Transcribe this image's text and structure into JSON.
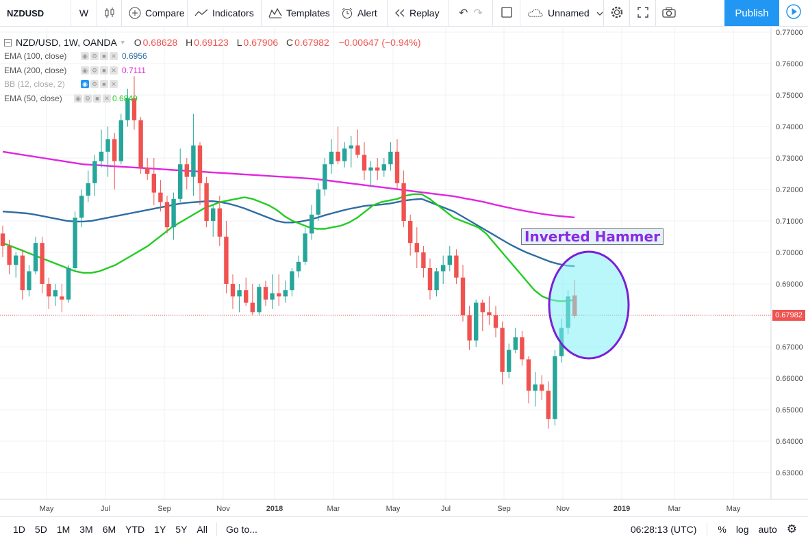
{
  "toolbar": {
    "symbol": "NZDUSD",
    "interval": "W",
    "compare_label": "Compare",
    "indicators_label": "Indicators",
    "templates_label": "Templates",
    "alert_label": "Alert",
    "replay_label": "Replay",
    "layout_name": "Unnamed",
    "publish_label": "Publish"
  },
  "legend": {
    "title": "NZD/USD, 1W, OANDA",
    "open_label": "O",
    "open": "0.68628",
    "high_label": "H",
    "high": "0.69123",
    "low_label": "L",
    "low": "0.67906",
    "close_label": "C",
    "close": "0.67982",
    "change": "−0.00647 (−0.94%)",
    "indicators": [
      {
        "name": "EMA (100, close)",
        "value": "0.6956",
        "color": "#2e6ca4"
      },
      {
        "name": "EMA (200, close)",
        "value": "0.7111",
        "color": "#e026e0"
      },
      {
        "name": "BB (12, close, 2)",
        "value": "",
        "color": "#999999"
      },
      {
        "name": "EMA (50, close)",
        "value": "0.6849",
        "color": "#22cc22"
      }
    ]
  },
  "annotation": {
    "text": "Inverted Hammer"
  },
  "last_price": "0.67982",
  "y_axis": {
    "ticks": [
      "0.77000",
      "0.76000",
      "0.75000",
      "0.74000",
      "0.73000",
      "0.72000",
      "0.71000",
      "0.70000",
      "0.69000",
      "0.68000",
      "0.67000",
      "0.66000",
      "0.65000",
      "0.64000",
      "0.63000"
    ]
  },
  "x_axis": {
    "ticks": [
      "May",
      "Jul",
      "Sep",
      "Nov",
      "2018",
      "Mar",
      "May",
      "Jul",
      "Sep",
      "Nov",
      "2019",
      "Mar",
      "May"
    ]
  },
  "bottom": {
    "ranges": [
      "1D",
      "5D",
      "1M",
      "3M",
      "6M",
      "YTD",
      "1Y",
      "5Y",
      "All"
    ],
    "goto_label": "Go to...",
    "clock": "06:28:13 (UTC)",
    "percent_label": "%",
    "log_label": "log",
    "auto_label": "auto"
  },
  "colors": {
    "up": "#26a69a",
    "down": "#ef5350",
    "ema50": "#22cc22",
    "ema100": "#2e6ca4",
    "ema200": "#e026e0"
  },
  "chart_data": {
    "type": "candlestick",
    "title": "NZD/USD, 1W, OANDA",
    "ylim": [
      0.62,
      0.775
    ],
    "x": [
      "2017-04-03",
      "2017-04-10",
      "2017-04-17",
      "2017-04-24",
      "2017-05-01",
      "2017-05-08",
      "2017-05-15",
      "2017-05-22",
      "2017-05-29",
      "2017-06-05",
      "2017-06-12",
      "2017-06-19",
      "2017-06-26",
      "2017-07-03",
      "2017-07-10",
      "2017-07-17",
      "2017-07-24",
      "2017-07-31",
      "2017-08-07",
      "2017-08-14",
      "2017-08-21",
      "2017-08-28",
      "2017-09-04",
      "2017-09-11",
      "2017-09-18",
      "2017-09-25",
      "2017-10-02",
      "2017-10-09",
      "2017-10-16",
      "2017-10-23",
      "2017-10-30",
      "2017-11-06",
      "2017-11-13",
      "2017-11-20",
      "2017-11-27",
      "2017-12-04",
      "2017-12-11",
      "2017-12-18",
      "2017-12-25",
      "2018-01-01",
      "2018-01-08",
      "2018-01-15",
      "2018-01-22",
      "2018-01-29",
      "2018-02-05",
      "2018-02-12",
      "2018-02-19",
      "2018-02-26",
      "2018-03-05",
      "2018-03-12",
      "2018-03-19",
      "2018-03-26",
      "2018-04-02",
      "2018-04-09",
      "2018-04-16",
      "2018-04-23",
      "2018-04-30",
      "2018-05-07",
      "2018-05-14",
      "2018-05-21",
      "2018-05-28",
      "2018-06-04",
      "2018-06-11",
      "2018-06-18",
      "2018-06-25",
      "2018-07-02",
      "2018-07-09",
      "2018-07-16",
      "2018-07-23",
      "2018-07-30",
      "2018-08-06",
      "2018-08-13",
      "2018-08-20",
      "2018-08-27",
      "2018-09-03",
      "2018-09-10",
      "2018-09-17",
      "2018-09-24",
      "2018-10-01",
      "2018-10-08",
      "2018-10-15",
      "2018-10-22",
      "2018-10-29",
      "2018-11-05",
      "2018-11-12",
      "2018-11-19",
      "2018-11-26",
      "2018-12-03"
    ],
    "ohlc": [
      [
        0.706,
        0.7085,
        0.6985,
        0.702
      ],
      [
        0.702,
        0.704,
        0.693,
        0.696
      ],
      [
        0.696,
        0.7,
        0.692,
        0.699
      ],
      [
        0.699,
        0.701,
        0.685,
        0.688
      ],
      [
        0.688,
        0.696,
        0.686,
        0.694
      ],
      [
        0.694,
        0.705,
        0.693,
        0.703
      ],
      [
        0.703,
        0.705,
        0.687,
        0.69
      ],
      [
        0.69,
        0.692,
        0.682,
        0.686
      ],
      [
        0.686,
        0.69,
        0.683,
        0.688
      ],
      [
        0.686,
        0.69,
        0.681,
        0.685
      ],
      [
        0.685,
        0.696,
        0.684,
        0.695
      ],
      [
        0.695,
        0.713,
        0.694,
        0.711
      ],
      [
        0.711,
        0.72,
        0.708,
        0.718
      ],
      [
        0.718,
        0.726,
        0.716,
        0.722
      ],
      [
        0.722,
        0.731,
        0.718,
        0.729
      ],
      [
        0.729,
        0.739,
        0.727,
        0.732
      ],
      [
        0.732,
        0.74,
        0.724,
        0.736
      ],
      [
        0.736,
        0.738,
        0.72,
        0.729
      ],
      [
        0.729,
        0.744,
        0.728,
        0.742
      ],
      [
        0.742,
        0.752,
        0.74,
        0.749
      ],
      [
        0.749,
        0.756,
        0.739,
        0.742
      ],
      [
        0.742,
        0.743,
        0.725,
        0.727
      ],
      [
        0.727,
        0.73,
        0.723,
        0.725
      ],
      [
        0.725,
        0.73,
        0.715,
        0.719
      ],
      [
        0.719,
        0.723,
        0.713,
        0.716
      ],
      [
        0.716,
        0.718,
        0.706,
        0.708
      ],
      [
        0.708,
        0.719,
        0.704,
        0.717
      ],
      [
        0.717,
        0.733,
        0.716,
        0.728
      ],
      [
        0.728,
        0.73,
        0.72,
        0.724
      ],
      [
        0.724,
        0.744,
        0.718,
        0.734
      ],
      [
        0.734,
        0.735,
        0.715,
        0.722
      ],
      [
        0.722,
        0.724,
        0.708,
        0.71
      ],
      [
        0.71,
        0.715,
        0.705,
        0.714
      ],
      [
        0.714,
        0.718,
        0.702,
        0.705
      ],
      [
        0.705,
        0.71,
        0.687,
        0.69
      ],
      [
        0.69,
        0.693,
        0.682,
        0.686
      ],
      [
        0.686,
        0.69,
        0.681,
        0.688
      ],
      [
        0.688,
        0.692,
        0.683,
        0.684
      ],
      [
        0.684,
        0.69,
        0.68,
        0.681
      ],
      [
        0.681,
        0.69,
        0.68,
        0.689
      ],
      [
        0.689,
        0.691,
        0.683,
        0.685
      ],
      [
        0.685,
        0.693,
        0.682,
        0.687
      ],
      [
        0.687,
        0.693,
        0.683,
        0.686
      ],
      [
        0.686,
        0.691,
        0.684,
        0.688
      ],
      [
        0.688,
        0.695,
        0.686,
        0.694
      ],
      [
        0.694,
        0.699,
        0.692,
        0.697
      ],
      [
        0.697,
        0.708,
        0.696,
        0.706
      ],
      [
        0.706,
        0.715,
        0.704,
        0.712
      ],
      [
        0.712,
        0.722,
        0.71,
        0.72
      ],
      [
        0.72,
        0.73,
        0.718,
        0.728
      ],
      [
        0.728,
        0.736,
        0.725,
        0.732
      ],
      [
        0.732,
        0.74,
        0.728,
        0.729
      ],
      [
        0.729,
        0.735,
        0.727,
        0.733
      ],
      [
        0.733,
        0.737,
        0.727,
        0.734
      ],
      [
        0.734,
        0.739,
        0.73,
        0.731
      ],
      [
        0.731,
        0.735,
        0.723,
        0.726
      ],
      [
        0.726,
        0.729,
        0.721,
        0.727
      ],
      [
        0.727,
        0.73,
        0.723,
        0.726
      ],
      [
        0.726,
        0.73,
        0.724,
        0.728
      ],
      [
        0.728,
        0.735,
        0.726,
        0.732
      ],
      [
        0.732,
        0.736,
        0.72,
        0.722
      ],
      [
        0.722,
        0.726,
        0.708,
        0.71
      ],
      [
        0.71,
        0.712,
        0.699,
        0.703
      ],
      [
        0.703,
        0.708,
        0.695,
        0.7
      ],
      [
        0.7,
        0.702,
        0.692,
        0.695
      ],
      [
        0.695,
        0.698,
        0.685,
        0.688
      ],
      [
        0.688,
        0.695,
        0.686,
        0.694
      ],
      [
        0.694,
        0.699,
        0.69,
        0.696
      ],
      [
        0.696,
        0.702,
        0.694,
        0.699
      ],
      [
        0.699,
        0.701,
        0.69,
        0.692
      ],
      [
        0.692,
        0.696,
        0.678,
        0.68
      ],
      [
        0.68,
        0.683,
        0.669,
        0.672
      ],
      [
        0.672,
        0.685,
        0.67,
        0.684
      ],
      [
        0.684,
        0.685,
        0.675,
        0.681
      ],
      [
        0.681,
        0.686,
        0.677,
        0.68
      ],
      [
        0.68,
        0.683,
        0.673,
        0.676
      ],
      [
        0.676,
        0.678,
        0.658,
        0.662
      ],
      [
        0.662,
        0.671,
        0.66,
        0.669
      ],
      [
        0.669,
        0.676,
        0.668,
        0.673
      ],
      [
        0.673,
        0.675,
        0.664,
        0.666
      ],
      [
        0.666,
        0.667,
        0.652,
        0.656
      ],
      [
        0.656,
        0.662,
        0.651,
        0.658
      ],
      [
        0.658,
        0.661,
        0.653,
        0.656
      ],
      [
        0.656,
        0.659,
        0.644,
        0.647
      ],
      [
        0.647,
        0.669,
        0.645,
        0.667
      ],
      [
        0.667,
        0.679,
        0.665,
        0.676
      ],
      [
        0.676,
        0.688,
        0.674,
        0.686
      ],
      [
        0.6863,
        0.6912,
        0.6791,
        0.6798
      ]
    ],
    "ema50": [
      0.703,
      0.702,
      0.701,
      0.7,
      0.699,
      0.698,
      0.697,
      0.696,
      0.695,
      0.694,
      0.6935,
      0.6935,
      0.694,
      0.695,
      0.696,
      0.6975,
      0.699,
      0.7005,
      0.702,
      0.704,
      0.706,
      0.708,
      0.7095,
      0.711,
      0.7125,
      0.714,
      0.715,
      0.716,
      0.7165,
      0.717,
      0.7175,
      0.717,
      0.716,
      0.715,
      0.7135,
      0.7115,
      0.71,
      0.709,
      0.708,
      0.7075,
      0.7075,
      0.708,
      0.7085,
      0.7095,
      0.711,
      0.713,
      0.715,
      0.716,
      0.7165,
      0.717,
      0.718,
      0.7185,
      0.7185,
      0.717,
      0.715,
      0.713,
      0.711,
      0.71,
      0.709,
      0.708,
      0.706,
      0.703,
      0.7,
      0.697,
      0.694,
      0.691,
      0.688,
      0.686,
      0.685,
      0.6845,
      0.6845,
      0.6849
    ],
    "ema100": [
      0.713,
      0.7128,
      0.7126,
      0.7124,
      0.712,
      0.7115,
      0.711,
      0.7105,
      0.71,
      0.7098,
      0.7098,
      0.71,
      0.7105,
      0.711,
      0.7115,
      0.712,
      0.7125,
      0.713,
      0.7135,
      0.714,
      0.7145,
      0.715,
      0.7155,
      0.7158,
      0.716,
      0.7162,
      0.7163,
      0.716,
      0.7155,
      0.7148,
      0.714,
      0.713,
      0.712,
      0.711,
      0.71,
      0.7095,
      0.7095,
      0.7098,
      0.7103,
      0.711,
      0.7118,
      0.7125,
      0.7132,
      0.7138,
      0.7143,
      0.7148,
      0.715,
      0.7152,
      0.7155,
      0.716,
      0.7165,
      0.7168,
      0.717,
      0.716,
      0.715,
      0.714,
      0.713,
      0.7115,
      0.71,
      0.7085,
      0.707,
      0.7055,
      0.704,
      0.7025,
      0.7012,
      0.7,
      0.699,
      0.698,
      0.697,
      0.6963,
      0.6958,
      0.6956
    ],
    "ema200": [
      0.732,
      0.7315,
      0.731,
      0.7305,
      0.73,
      0.7295,
      0.729,
      0.7285,
      0.728,
      0.7278,
      0.7276,
      0.7274,
      0.7272,
      0.727,
      0.7268,
      0.7266,
      0.7264,
      0.7262,
      0.726,
      0.7258,
      0.7256,
      0.7254,
      0.7252,
      0.725,
      0.7248,
      0.7246,
      0.7244,
      0.7242,
      0.724,
      0.7238,
      0.7236,
      0.7234,
      0.723,
      0.7226,
      0.7222,
      0.7218,
      0.7214,
      0.721,
      0.7206,
      0.7202,
      0.7198,
      0.7194,
      0.719,
      0.7186,
      0.7182,
      0.7178,
      0.7172,
      0.7166,
      0.716,
      0.7152,
      0.7145,
      0.7138,
      0.7132,
      0.7126,
      0.7121,
      0.7117,
      0.7114,
      0.7111
    ]
  }
}
